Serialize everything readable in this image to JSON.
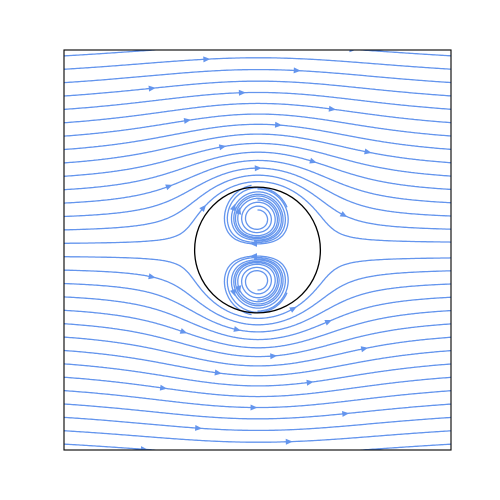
{
  "chart_data": {
    "type": "streamplot",
    "title": "",
    "xlabel": "",
    "ylabel": "",
    "xlim": [
      -2,
      2
    ],
    "ylim": [
      -2,
      2
    ],
    "axis_ticks": false,
    "grid": false,
    "free_stream_direction": "left-to-right",
    "obstacle": {
      "shape": "circle",
      "center": [
        0,
        0
      ],
      "radius": 0.65
    },
    "internal_vortices": [
      {
        "center": [
          0,
          0.3
        ],
        "rotation": "clockwise"
      },
      {
        "center": [
          0,
          -0.3
        ],
        "rotation": "counterclockwise"
      }
    ],
    "colors": {
      "streamline": "#6495ed",
      "outline": "#000000",
      "background": "#ffffff"
    }
  }
}
